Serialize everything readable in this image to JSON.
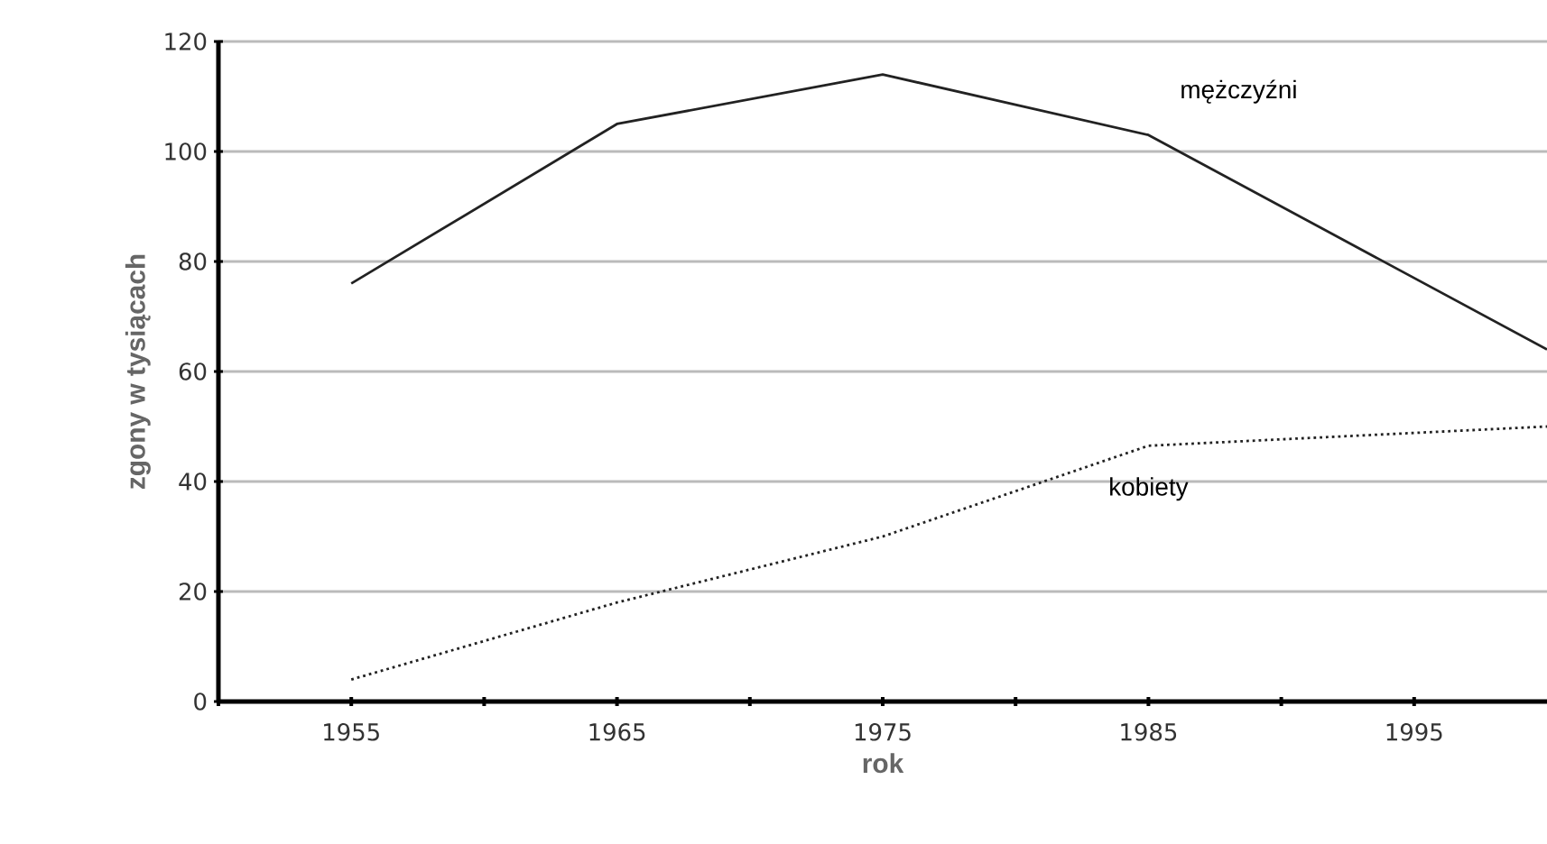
{
  "chart_data": {
    "type": "line",
    "xlabel": "rok",
    "ylabel": "zgony w tysiącach",
    "xlim": [
      1950,
      2000
    ],
    "ylim": [
      0,
      120
    ],
    "xticks": [
      {
        "value": 1950,
        "label": null
      },
      {
        "value": 1955,
        "label": "1955"
      },
      {
        "value": 1960,
        "label": null
      },
      {
        "value": 1965,
        "label": "1965"
      },
      {
        "value": 1970,
        "label": null
      },
      {
        "value": 1975,
        "label": "1975"
      },
      {
        "value": 1980,
        "label": null
      },
      {
        "value": 1985,
        "label": "1985"
      },
      {
        "value": 1990,
        "label": null
      },
      {
        "value": 1995,
        "label": "1995"
      }
    ],
    "yticks": [
      0,
      20,
      40,
      60,
      80,
      100,
      120
    ],
    "grid": "y",
    "marker": "none",
    "x": [
      1955,
      1965,
      1975,
      1985,
      2000
    ],
    "series": [
      {
        "name": "mężczyźni",
        "color": "#222222",
        "line_style": "solid",
        "values": [
          76,
          105,
          114,
          103,
          64
        ]
      },
      {
        "name": "kobiety",
        "color": "#222222",
        "line_style": "dotted",
        "values": [
          4,
          18,
          30,
          46.5,
          50
        ]
      }
    ]
  }
}
